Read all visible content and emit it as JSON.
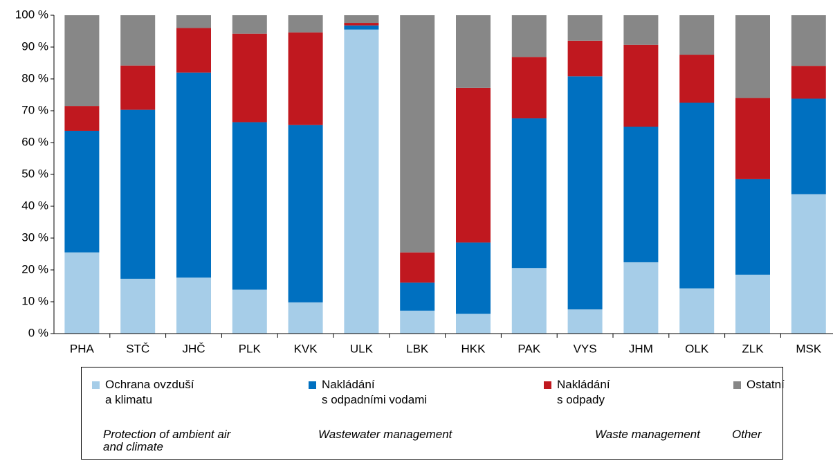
{
  "chart_data": {
    "type": "stacked_bar",
    "categories": [
      "PHA",
      "STČ",
      "JHČ",
      "PLK",
      "KVK",
      "ULK",
      "LBK",
      "HKK",
      "PAK",
      "VYS",
      "JHM",
      "OLK",
      "ZLK",
      "MSK"
    ],
    "series": [
      {
        "name": "Ochrana ovzduší\na klimatu",
        "name_en": "Protection of ambient air\nand climate",
        "color": "#a6cde8",
        "values": [
          25.5,
          17.2,
          17.6,
          13.8,
          9.8,
          95.5,
          7.2,
          6.2,
          20.6,
          7.6,
          22.4,
          14.2,
          18.5,
          43.8
        ]
      },
      {
        "name": "Nakládání\ns odpadními vodami",
        "name_en": "Wastewater management",
        "color": "#0070c0",
        "values": [
          38.2,
          53.1,
          64.4,
          52.6,
          55.7,
          1.3,
          8.8,
          22.4,
          47,
          73.2,
          42.6,
          58.3,
          30,
          30
        ]
      },
      {
        "name": "Nakládání\ns odpady",
        "name_en": "Waste management",
        "color": "#c0181f",
        "values": [
          7.8,
          13.9,
          14,
          27.8,
          29.1,
          0.8,
          9.5,
          48.6,
          19.3,
          11.2,
          25.7,
          15.1,
          25.5,
          10.3
        ]
      },
      {
        "name": "Ostatní",
        "name_en": "Other",
        "color": "#878787",
        "values": [
          28.5,
          15.8,
          4,
          5.8,
          5.4,
          2.4,
          74.5,
          22.8,
          13.1,
          8,
          9.3,
          12.4,
          26,
          15.9
        ]
      }
    ],
    "ylim": [
      0,
      100
    ],
    "yticks": [
      {
        "value": 0,
        "label": "0 %"
      },
      {
        "value": 10,
        "label": "10 %"
      },
      {
        "value": 20,
        "label": "20 %"
      },
      {
        "value": 30,
        "label": "30 %"
      },
      {
        "value": 40,
        "label": "40 %"
      },
      {
        "value": 50,
        "label": "50 %"
      },
      {
        "value": 60,
        "label": "60 %"
      },
      {
        "value": 70,
        "label": "70 %"
      },
      {
        "value": 80,
        "label": "80 %"
      },
      {
        "value": 90,
        "label": "90 %"
      },
      {
        "value": 100,
        "label": "100 %"
      }
    ]
  }
}
